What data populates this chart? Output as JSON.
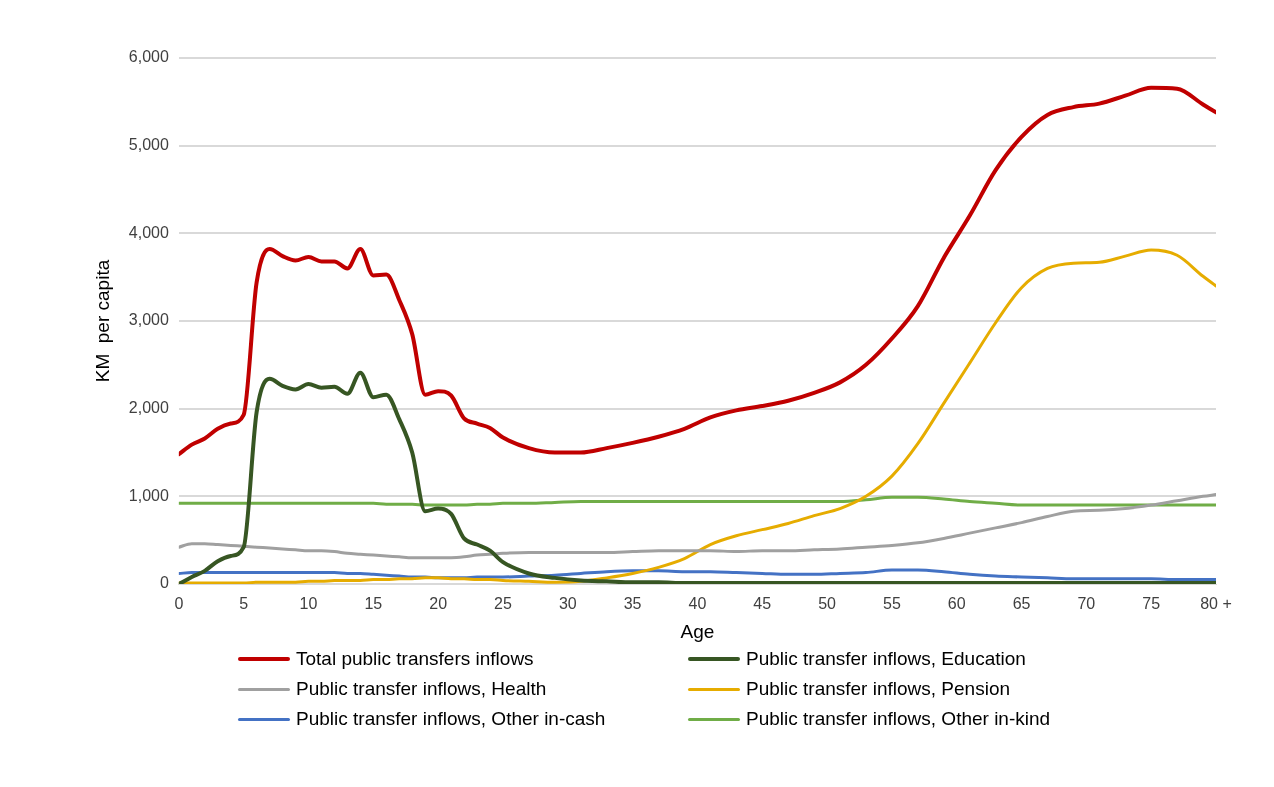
{
  "chart_data": {
    "type": "line",
    "xlabel": "Age",
    "ylabel": "KM  per capita",
    "x": [
      0,
      1,
      2,
      3,
      4,
      5,
      6,
      7,
      8,
      9,
      10,
      11,
      12,
      13,
      14,
      15,
      16,
      17,
      18,
      19,
      20,
      21,
      22,
      23,
      24,
      25,
      27,
      29,
      31,
      33,
      35,
      37,
      39,
      41,
      43,
      45,
      47,
      49,
      51,
      53,
      55,
      57,
      59,
      61,
      63,
      65,
      67,
      69,
      71,
      73,
      75,
      77,
      79,
      80
    ],
    "xlim": [
      0,
      80
    ],
    "xticks": [
      0,
      5,
      10,
      15,
      20,
      25,
      30,
      35,
      40,
      45,
      50,
      55,
      60,
      65,
      70,
      75,
      {
        "value": 80,
        "label": "80 +"
      }
    ],
    "ylim": [
      0,
      6000
    ],
    "yticks": [
      {
        "value": 0,
        "label": "0"
      },
      {
        "value": 1000,
        "label": "1,000"
      },
      {
        "value": 2000,
        "label": "2,000"
      },
      {
        "value": 3000,
        "label": "3,000"
      },
      {
        "value": 4000,
        "label": "4,000"
      },
      {
        "value": 5000,
        "label": "5,000"
      },
      {
        "value": 6000,
        "label": "6,000"
      }
    ],
    "grid": "y",
    "legend": "bottom",
    "marker": "none",
    "line_style": "solid",
    "series": [
      {
        "name": "Total public transfers inflows",
        "color": "#c00000",
        "values": [
          1480,
          1590,
          1660,
          1770,
          1830,
          1930,
          3440,
          3820,
          3740,
          3690,
          3730,
          3680,
          3680,
          3600,
          3820,
          3520,
          3530,
          3240,
          2850,
          2160,
          2200,
          2150,
          1890,
          1830,
          1780,
          1670,
          1550,
          1500,
          1500,
          1550,
          1610,
          1680,
          1770,
          1900,
          1980,
          2030,
          2090,
          2180,
          2300,
          2500,
          2800,
          3170,
          3720,
          4200,
          4720,
          5100,
          5350,
          5440,
          5480,
          5570,
          5660,
          5650,
          5470,
          5380
        ]
      },
      {
        "name": "Public transfer inflows, Education",
        "color": "#375623",
        "values": [
          0,
          80,
          150,
          260,
          320,
          420,
          1960,
          2340,
          2260,
          2220,
          2280,
          2240,
          2250,
          2170,
          2410,
          2130,
          2160,
          1880,
          1500,
          830,
          860,
          800,
          520,
          450,
          380,
          250,
          120,
          70,
          40,
          30,
          20,
          20,
          10,
          10,
          10,
          10,
          10,
          10,
          10,
          10,
          10,
          10,
          10,
          10,
          10,
          10,
          10,
          10,
          10,
          10,
          10,
          10,
          10,
          10
        ]
      },
      {
        "name": "Public transfer inflows, Health",
        "color": "#a0a0a0",
        "values": [
          420,
          460,
          460,
          450,
          440,
          430,
          420,
          410,
          400,
          390,
          380,
          380,
          370,
          350,
          340,
          330,
          320,
          310,
          300,
          300,
          300,
          300,
          310,
          330,
          340,
          350,
          360,
          360,
          360,
          360,
          370,
          380,
          380,
          380,
          370,
          380,
          380,
          390,
          400,
          420,
          440,
          470,
          520,
          580,
          640,
          700,
          770,
          830,
          840,
          860,
          900,
          950,
          1000,
          1020
        ]
      },
      {
        "name": "Public transfer inflows, Pension",
        "color": "#e6ac00",
        "values": [
          10,
          10,
          10,
          10,
          10,
          10,
          20,
          20,
          20,
          20,
          30,
          30,
          40,
          40,
          40,
          50,
          50,
          60,
          60,
          70,
          70,
          60,
          60,
          50,
          50,
          40,
          30,
          20,
          30,
          70,
          120,
          190,
          290,
          450,
          550,
          620,
          690,
          780,
          860,
          1000,
          1230,
          1600,
          2060,
          2520,
          2980,
          3380,
          3600,
          3660,
          3670,
          3740,
          3810,
          3750,
          3510,
          3400
        ]
      },
      {
        "name": "Public transfer inflows, Other in-cash",
        "color": "#4472c4",
        "values": [
          120,
          130,
          130,
          130,
          130,
          130,
          130,
          130,
          130,
          130,
          130,
          130,
          130,
          120,
          120,
          110,
          100,
          90,
          80,
          80,
          70,
          70,
          70,
          80,
          80,
          80,
          90,
          100,
          120,
          140,
          150,
          150,
          140,
          140,
          130,
          120,
          110,
          110,
          120,
          130,
          160,
          160,
          140,
          110,
          90,
          80,
          70,
          60,
          60,
          60,
          60,
          50,
          50,
          50
        ]
      },
      {
        "name": "Public transfer inflows, Other in-kind",
        "color": "#70ad47",
        "values": [
          920,
          920,
          920,
          920,
          920,
          920,
          920,
          920,
          920,
          920,
          920,
          920,
          920,
          920,
          920,
          920,
          910,
          910,
          910,
          900,
          900,
          900,
          900,
          910,
          910,
          920,
          920,
          930,
          940,
          940,
          940,
          940,
          940,
          940,
          940,
          940,
          940,
          940,
          940,
          960,
          990,
          990,
          970,
          940,
          920,
          900,
          900,
          900,
          900,
          900,
          900,
          900,
          900,
          900
        ]
      }
    ]
  }
}
